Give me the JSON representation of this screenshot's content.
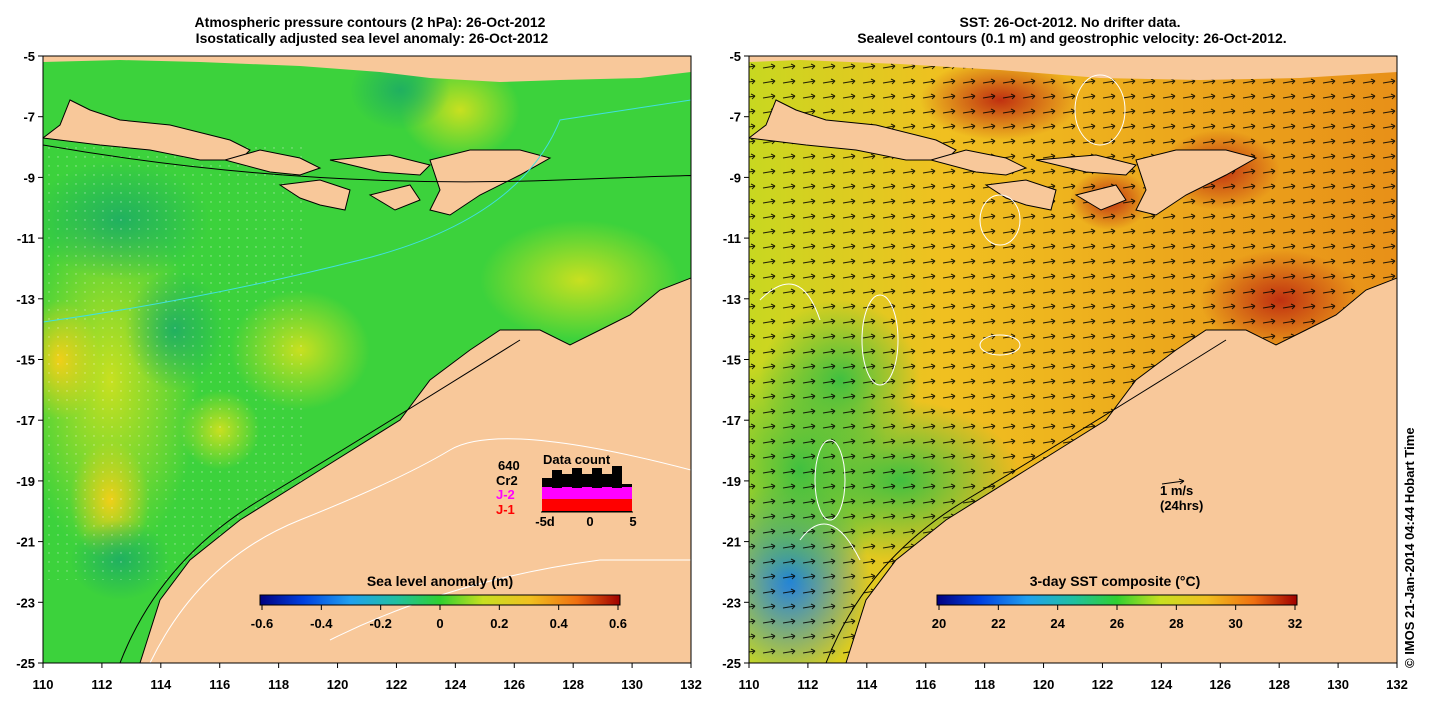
{
  "left_panel": {
    "title_line1": "Atmospheric pressure contours (2 hPa): 26-Oct-2012",
    "title_line2": " Isostatically adjusted sea level anomaly: 26-Oct-2012",
    "colorbar_title": "Sea level anomaly (m)",
    "colorbar_ticks": [
      "-0.6",
      "-0.4",
      "-0.2",
      "0",
      "0.2",
      "0.4",
      "0.6"
    ],
    "data_count": {
      "title": "Data count",
      "count": "640",
      "sat_cr2": "Cr2",
      "sat_j2": "J-2",
      "sat_j1": "J-1",
      "axis_labels": [
        "-5d",
        "0",
        "5"
      ],
      "colors": {
        "cr2": "#000000",
        "j2": "#ff00ff",
        "j1": "#ff0000"
      }
    }
  },
  "right_panel": {
    "title_line1": "SST: 26-Oct-2012. No drifter data.",
    "title_line2": " Sealevel contours (0.1 m) and geostrophic velocity: 26-Oct-2012.",
    "colorbar_title": "3-day SST composite (°C)",
    "colorbar_ticks": [
      "20",
      "22",
      "24",
      "26",
      "28",
      "30",
      "32"
    ],
    "vector_scale_label": "1 m/s",
    "vector_scale_sub": "(24hrs)"
  },
  "axes": {
    "lat_ticks": [
      "-5",
      "-7",
      "-9",
      "-11",
      "-13",
      "-15",
      "-17",
      "-19",
      "-21",
      "-23",
      "-25"
    ],
    "lon_ticks": [
      "110",
      "112",
      "114",
      "116",
      "118",
      "120",
      "122",
      "124",
      "126",
      "128",
      "130",
      "132"
    ]
  },
  "credit": "© IMOS 21-Jan-2014 04:44 Hobart Time",
  "colors": {
    "land": "#f8c89a",
    "ocean_green": "#3cd23c",
    "sst_orange": "#f0a020",
    "cyan_contour": "#40e0e0"
  }
}
